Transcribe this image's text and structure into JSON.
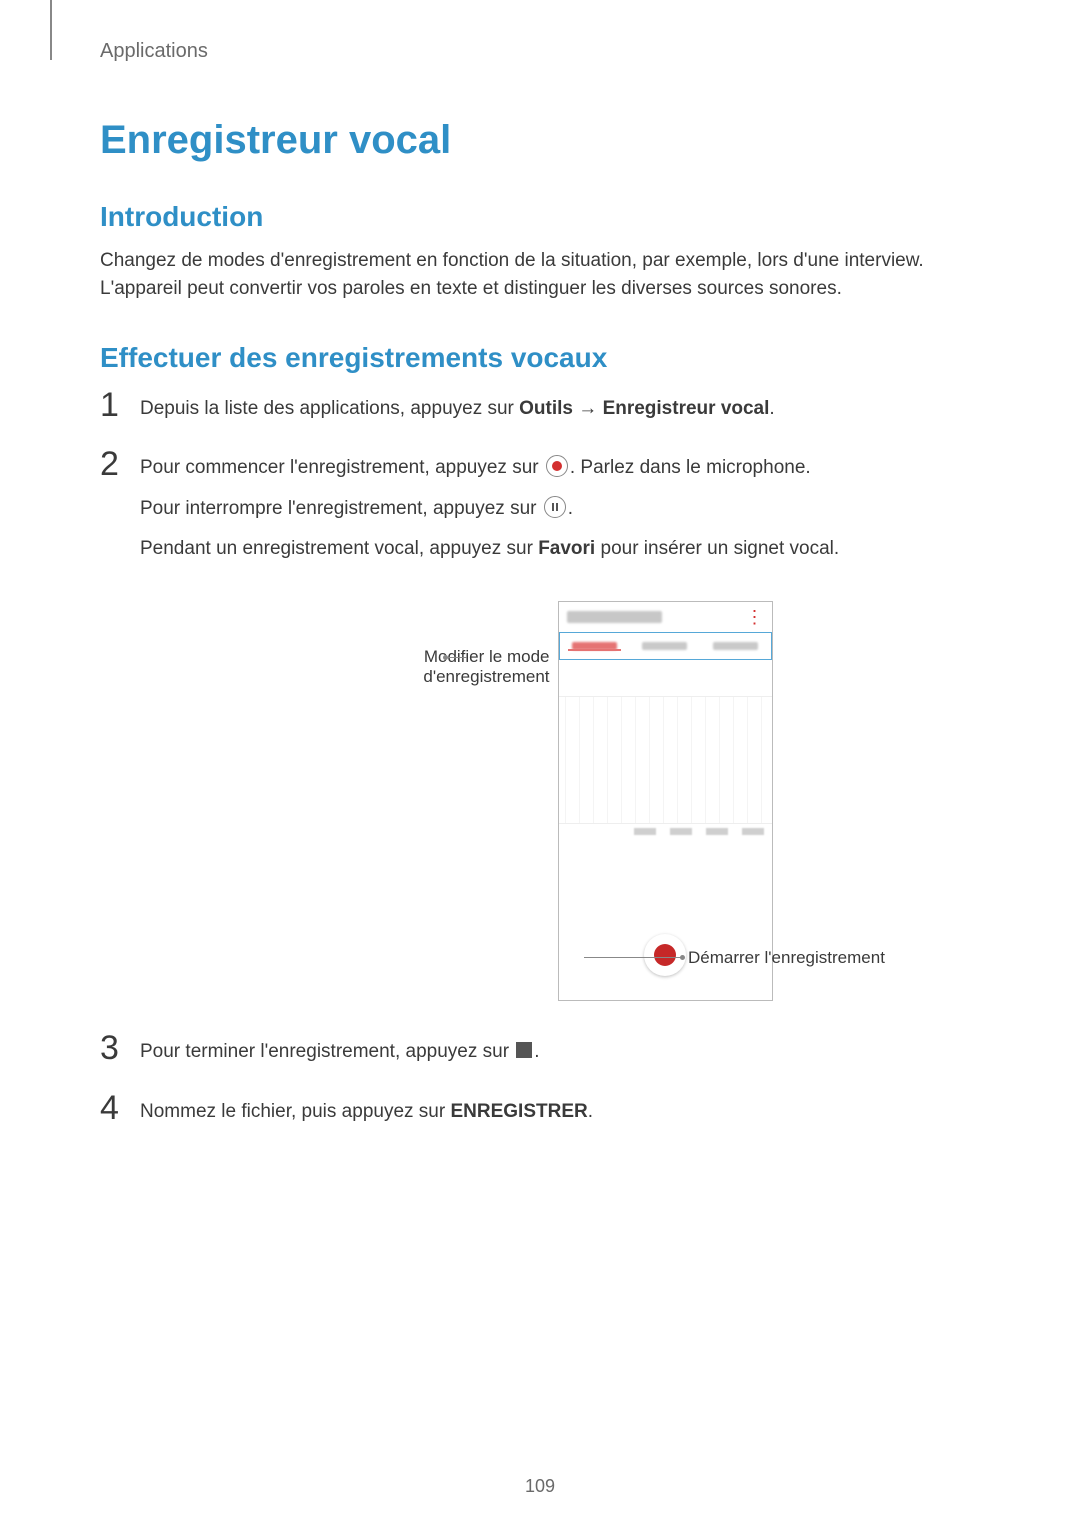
{
  "breadcrumb": "Applications",
  "main_title": "Enregistreur vocal",
  "intro": {
    "heading": "Introduction",
    "body": "Changez de modes d'enregistrement en fonction de la situation, par exemple, lors d'une interview. L'appareil peut convertir vos paroles en texte et distinguer les diverses sources sonores."
  },
  "howto": {
    "heading": "Effectuer des enregistrements vocaux"
  },
  "steps": {
    "s1": {
      "num": "1",
      "pre": "Depuis la liste des applications, appuyez sur ",
      "bold1": "Outils",
      "arrow": " → ",
      "bold2": "Enregistreur vocal",
      "post": "."
    },
    "s2": {
      "num": "2",
      "l1_pre": "Pour commencer l'enregistrement, appuyez sur ",
      "l1_post": ". Parlez dans le microphone.",
      "l2_pre": "Pour interrompre l'enregistrement, appuyez sur ",
      "l2_post": ".",
      "l3_pre": "Pendant un enregistrement vocal, appuyez sur ",
      "l3_bold": "Favori",
      "l3_post": " pour insérer un signet vocal."
    },
    "s3": {
      "num": "3",
      "pre": "Pour terminer l'enregistrement, appuyez sur ",
      "post": "."
    },
    "s4": {
      "num": "4",
      "pre": "Nommez le fichier, puis appuyez sur ",
      "bold": "ENREGISTRER",
      "post": "."
    }
  },
  "callouts": {
    "left": "Modifier le mode d'enregistrement",
    "right": "Démarrer l'enregistrement"
  },
  "phone": {
    "tabs_count": 3,
    "time_marks": 4
  },
  "page_number": "109",
  "colors": {
    "accent": "#2f8fc6",
    "record": "#c62828",
    "text": "#3a3a3a"
  }
}
